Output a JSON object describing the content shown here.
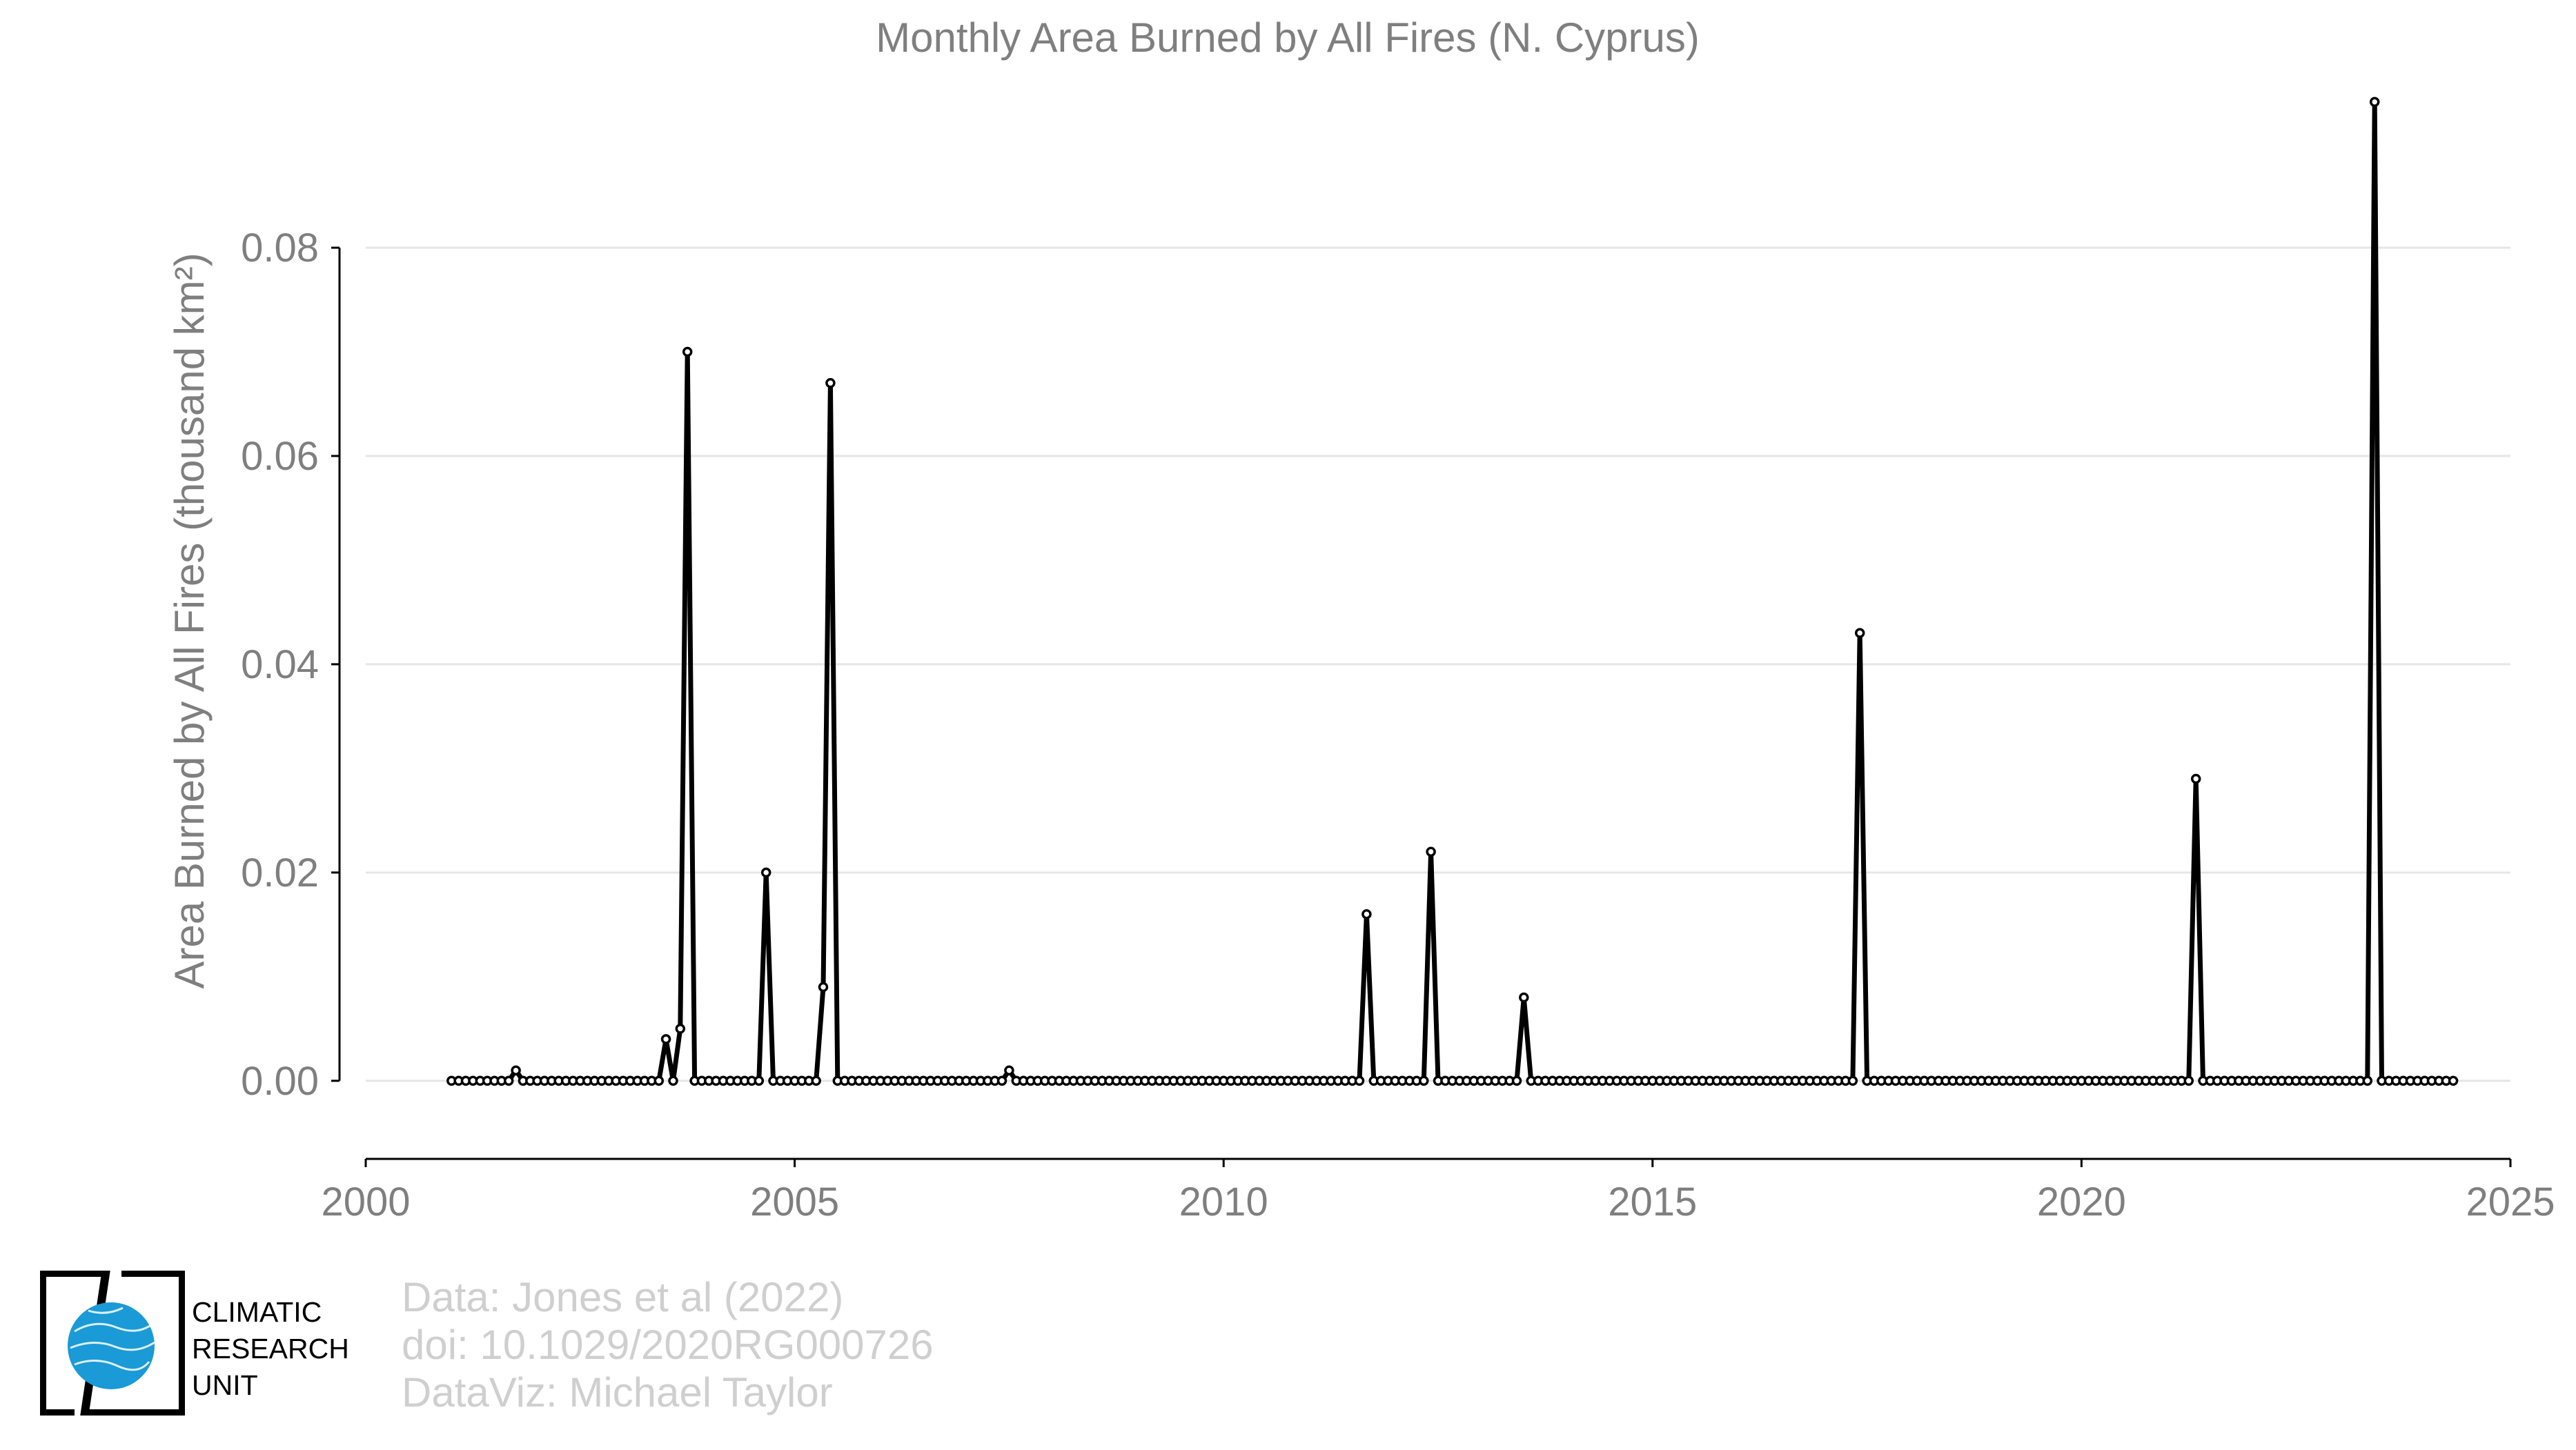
{
  "chart_data": {
    "type": "line",
    "title": "Monthly Area Burned by All Fires (N. Cyprus)",
    "ylabel": "Area Burned by All Fires (thousand km²)",
    "xlabel": "",
    "xlim": [
      2000,
      2025
    ],
    "ylim": [
      -0.0075,
      0.0965
    ],
    "x_ticks": [
      "2000",
      "2005",
      "2010",
      "2015",
      "2020",
      "2025"
    ],
    "y_ticks": [
      "0.00",
      "0.02",
      "0.04",
      "0.06",
      "0.08"
    ],
    "grid": "horizontal",
    "line_color": "#000000",
    "series": [
      {
        "x_start": "2001-01",
        "x_end": "2023-05",
        "frequency": "monthly",
        "values": [
          0,
          0,
          0,
          0,
          0,
          0,
          0,
          0,
          0,
          0.001,
          0,
          0,
          0,
          0,
          0,
          0,
          0,
          0,
          0,
          0,
          0,
          0,
          0,
          0,
          0,
          0,
          0,
          0,
          0,
          0,
          0.004,
          0,
          0.005,
          0.07,
          0,
          0,
          0,
          0,
          0,
          0,
          0,
          0,
          0,
          0,
          0.02,
          0,
          0,
          0,
          0,
          0,
          0,
          0,
          0.009,
          0.067,
          0,
          0,
          0,
          0,
          0,
          0,
          0,
          0,
          0,
          0,
          0,
          0,
          0,
          0,
          0,
          0,
          0,
          0,
          0,
          0,
          0,
          0,
          0,
          0,
          0.001,
          0,
          0,
          0,
          0,
          0,
          0,
          0,
          0,
          0,
          0,
          0,
          0,
          0,
          0,
          0,
          0,
          0,
          0,
          0,
          0,
          0,
          0,
          0,
          0,
          0,
          0,
          0,
          0,
          0,
          0,
          0,
          0,
          0,
          0,
          0,
          0,
          0,
          0,
          0,
          0,
          0,
          0,
          0,
          0,
          0,
          0,
          0,
          0,
          0,
          0.016,
          0,
          0,
          0,
          0,
          0,
          0,
          0,
          0,
          0.022,
          0,
          0,
          0,
          0,
          0,
          0,
          0,
          0,
          0,
          0,
          0,
          0,
          0.008,
          0,
          0,
          0,
          0,
          0,
          0,
          0,
          0,
          0,
          0,
          0,
          0,
          0,
          0,
          0,
          0,
          0,
          0,
          0,
          0,
          0,
          0,
          0,
          0,
          0,
          0,
          0,
          0,
          0,
          0,
          0,
          0,
          0,
          0,
          0,
          0,
          0,
          0,
          0,
          0,
          0,
          0,
          0,
          0,
          0,
          0,
          0.043,
          0,
          0,
          0,
          0,
          0,
          0,
          0,
          0,
          0,
          0,
          0,
          0,
          0,
          0,
          0,
          0,
          0,
          0,
          0,
          0,
          0,
          0,
          0,
          0,
          0,
          0,
          0,
          0,
          0,
          0,
          0,
          0,
          0,
          0,
          0,
          0,
          0,
          0,
          0,
          0,
          0,
          0,
          0,
          0,
          0,
          0,
          0.029,
          0,
          0,
          0,
          0,
          0,
          0,
          0,
          0,
          0,
          0,
          0,
          0,
          0,
          0,
          0,
          0,
          0,
          0,
          0,
          0,
          0,
          0,
          0,
          0,
          0.094,
          0,
          0,
          0,
          0,
          0,
          0,
          0,
          0,
          0,
          0,
          0
        ]
      }
    ]
  },
  "credits": {
    "line1": "Data: Jones et al (2022)",
    "line2": "doi: 10.1029/2020RG000726",
    "line3": "DataViz: Michael Taylor"
  },
  "logo": {
    "line1": "CLIMATIC",
    "line2": "RESEARCH",
    "line3": "UNIT",
    "color": "#1a9ad6"
  }
}
